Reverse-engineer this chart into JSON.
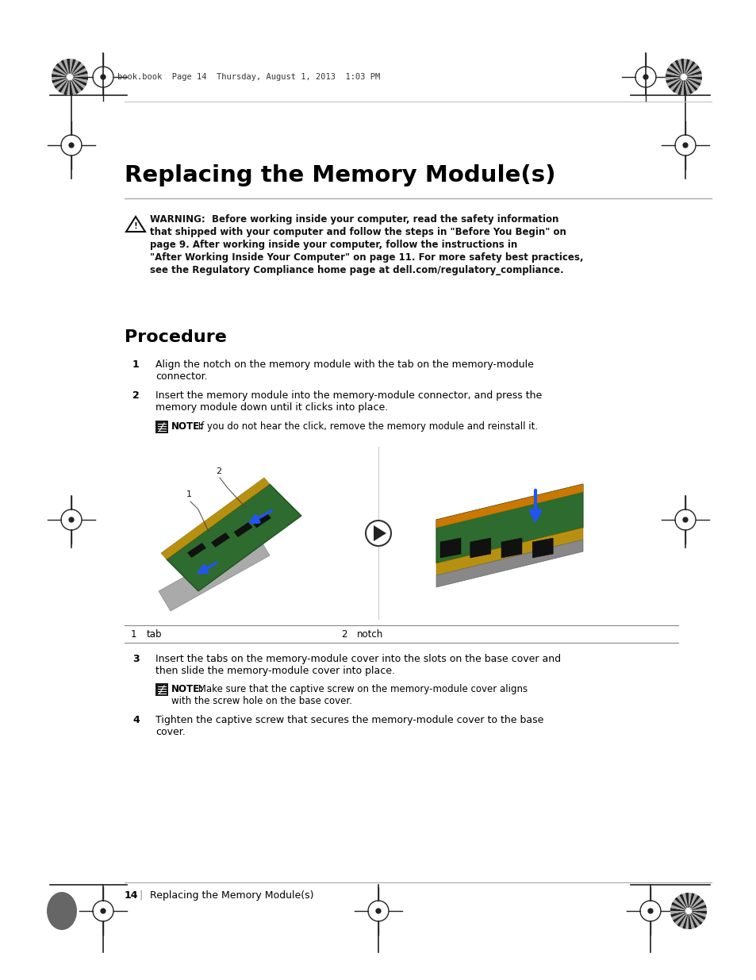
{
  "title": "Replacing the Memory Module(s)",
  "header_text": "book.book  Page 14  Thursday, August 1, 2013  1:03 PM",
  "warning_text": "WARNING:  Before working inside your computer, read the safety information\nthat shipped with your computer and follow the steps in \"Before You Begin\" on\npage 9. After working inside your computer, follow the instructions in\n\"After Working Inside Your Computer\" on page 11. For more safety best practices,\nsee the Regulatory Compliance home page at dell.com/regulatory_compliance.",
  "section_title": "Procedure",
  "step1_num": "1",
  "step1_text": "Align the notch on the memory module with the tab on the memory-module\nconnector.",
  "step2_num": "2",
  "step2_text": "Insert the memory module into the memory-module connector, and press the\nmemory module down until it clicks into place.",
  "note1_bold": "NOTE:",
  "note1_rest": " If you do not hear the click, remove the memory module and reinstall it.",
  "label1_num": "1",
  "label1_text": "tab",
  "label2_num": "2",
  "label2_text": "notch",
  "step3_num": "3",
  "step3_text": "Insert the tabs on the memory-module cover into the slots on the base cover and\nthen slide the memory-module cover into place.",
  "note2_bold": "NOTE:",
  "note2_rest": " Make sure that the captive screw on the memory-module cover aligns\nwith the screw hole on the base cover.",
  "step4_num": "4",
  "step4_text": "Tighten the captive screw that secures the memory-module cover to the base\ncover.",
  "footer_page": "14",
  "footer_sep": "    |    ",
  "footer_title": "Replacing the Memory Module(s)",
  "bg_color": "#ffffff"
}
